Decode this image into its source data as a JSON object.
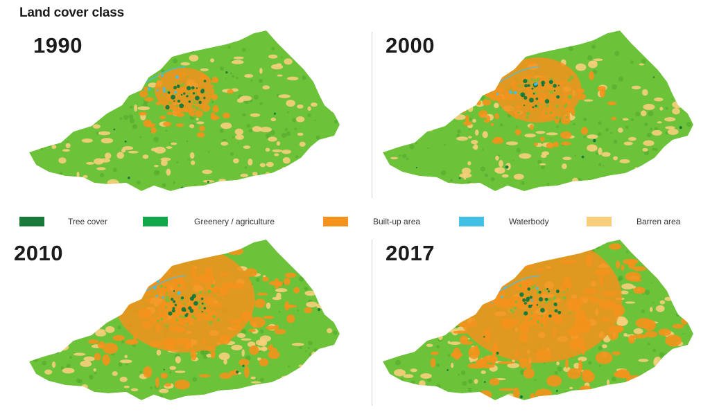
{
  "title": "Land cover class",
  "legend": [
    {
      "label": "Tree cover",
      "color": "#1a7a3a"
    },
    {
      "label": "Greenery / agriculture",
      "color": "#12a84a"
    },
    {
      "label": "Built-up area",
      "color": "#f3921c"
    },
    {
      "label": "Waterbody",
      "color": "#43c0e6"
    },
    {
      "label": "Barren area",
      "color": "#f7cf7c"
    }
  ],
  "maps": [
    {
      "year": "1990",
      "builtup_level": 0.1
    },
    {
      "year": "2000",
      "builtup_level": 0.25
    },
    {
      "year": "2010",
      "builtup_level": 0.55
    },
    {
      "year": "2017",
      "builtup_level": 0.7
    }
  ],
  "colors": {
    "land_green": "#6cc33a",
    "land_green_dark": "#52a82c"
  }
}
